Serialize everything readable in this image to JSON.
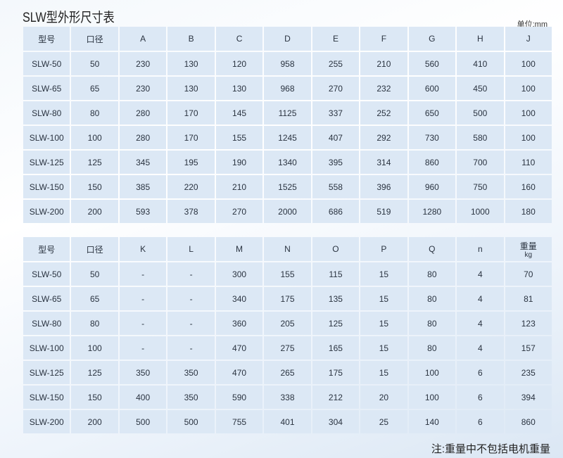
{
  "title": "SLW型外形尺寸表",
  "unit": "单位:mm",
  "table1": {
    "headers": [
      "型号",
      "口径",
      "A",
      "B",
      "C",
      "D",
      "E",
      "F",
      "G",
      "H",
      "J"
    ],
    "rows": [
      [
        "SLW-50",
        "50",
        "230",
        "130",
        "120",
        "958",
        "255",
        "210",
        "560",
        "410",
        "100"
      ],
      [
        "SLW-65",
        "65",
        "230",
        "130",
        "130",
        "968",
        "270",
        "232",
        "600",
        "450",
        "100"
      ],
      [
        "SLW-80",
        "80",
        "280",
        "170",
        "145",
        "1125",
        "337",
        "252",
        "650",
        "500",
        "100"
      ],
      [
        "SLW-100",
        "100",
        "280",
        "170",
        "155",
        "1245",
        "407",
        "292",
        "730",
        "580",
        "100"
      ],
      [
        "SLW-125",
        "125",
        "345",
        "195",
        "190",
        "1340",
        "395",
        "314",
        "860",
        "700",
        "110"
      ],
      [
        "SLW-150",
        "150",
        "385",
        "220",
        "210",
        "1525",
        "558",
        "396",
        "960",
        "750",
        "160"
      ],
      [
        "SLW-200",
        "200",
        "593",
        "378",
        "270",
        "2000",
        "686",
        "519",
        "1280",
        "1000",
        "180"
      ]
    ]
  },
  "table2": {
    "headers": [
      "型号",
      "口径",
      "K",
      "L",
      "M",
      "N",
      "O",
      "P",
      "Q",
      "n",
      "重量"
    ],
    "weight_unit": "kg",
    "rows": [
      [
        "SLW-50",
        "50",
        "-",
        "-",
        "300",
        "155",
        "115",
        "15",
        "80",
        "4",
        "70"
      ],
      [
        "SLW-65",
        "65",
        "-",
        "-",
        "340",
        "175",
        "135",
        "15",
        "80",
        "4",
        "81"
      ],
      [
        "SLW-80",
        "80",
        "-",
        "-",
        "360",
        "205",
        "125",
        "15",
        "80",
        "4",
        "123"
      ],
      [
        "SLW-100",
        "100",
        "-",
        "-",
        "470",
        "275",
        "165",
        "15",
        "80",
        "4",
        "157"
      ],
      [
        "SLW-125",
        "125",
        "350",
        "350",
        "470",
        "265",
        "175",
        "15",
        "100",
        "6",
        "235"
      ],
      [
        "SLW-150",
        "150",
        "400",
        "350",
        "590",
        "338",
        "212",
        "20",
        "100",
        "6",
        "394"
      ],
      [
        "SLW-200",
        "200",
        "500",
        "500",
        "755",
        "401",
        "304",
        "25",
        "140",
        "6",
        "860"
      ]
    ]
  },
  "note": "注:重量中不包括电机重量"
}
